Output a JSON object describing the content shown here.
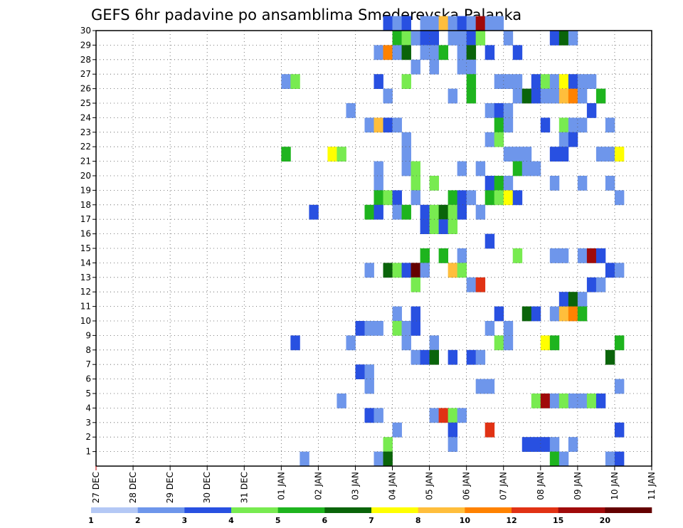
{
  "chart_data": {
    "type": "heatmap",
    "title": "GEFS 6hr padavine po ansamblima Smederevska Palanka",
    "xlabel": "",
    "ylabel": "",
    "x_ticks": [
      "27 DEC",
      "28 DEC",
      "29 DEC",
      "30 DEC",
      "31 DEC",
      "01 JAN",
      "02 JAN",
      "03 JAN",
      "04 JAN",
      "05 JAN",
      "06 JAN",
      "07 JAN",
      "08 JAN",
      "09 JAN",
      "10 JAN",
      "11 JAN"
    ],
    "x_range": [
      "27 DEC 00Z",
      "11 JAN 00Z"
    ],
    "x_step_hours": 6,
    "y_ticks": [
      "1",
      "2",
      "3",
      "4",
      "5",
      "6",
      "7",
      "8",
      "9",
      "10",
      "11",
      "12",
      "13",
      "14",
      "15",
      "16",
      "17",
      "18",
      "19",
      "20",
      "21",
      "22",
      "23",
      "24",
      "25",
      "26",
      "27",
      "28",
      "29",
      "30"
    ],
    "y_range": [
      0,
      30
    ],
    "grid": true,
    "legend": {
      "placement": "bottom",
      "colors": [
        "#b4c8f5",
        "#6e96eb",
        "#2850e1",
        "#78eb50",
        "#1eb41e",
        "#0a640a",
        "#ffff00",
        "#ffbe3c",
        "#ff8200",
        "#e13214",
        "#a00a0a",
        "#640000"
      ],
      "labels": [
        "1",
        "2",
        "3",
        "4",
        "5",
        "6",
        "7",
        "8",
        "10",
        "12",
        "15",
        "20"
      ]
    },
    "cells": [
      [
        30,
        31,
        2
      ],
      [
        30,
        32,
        1
      ],
      [
        30,
        33,
        2
      ],
      [
        30,
        35,
        1
      ],
      [
        30,
        36,
        1
      ],
      [
        30,
        37,
        7
      ],
      [
        30,
        38,
        1
      ],
      [
        30,
        39,
        2
      ],
      [
        30,
        40,
        1
      ],
      [
        30,
        41,
        10
      ],
      [
        30,
        42,
        1
      ],
      [
        30,
        43,
        1
      ],
      [
        29,
        32,
        4
      ],
      [
        29,
        33,
        3
      ],
      [
        29,
        34,
        1
      ],
      [
        29,
        35,
        2
      ],
      [
        29,
        36,
        2
      ],
      [
        29,
        38,
        1
      ],
      [
        29,
        39,
        1
      ],
      [
        29,
        40,
        2
      ],
      [
        29,
        41,
        3
      ],
      [
        29,
        44,
        1
      ],
      [
        29,
        49,
        2
      ],
      [
        29,
        50,
        5
      ],
      [
        29,
        51,
        1
      ],
      [
        28,
        30,
        1
      ],
      [
        28,
        31,
        8
      ],
      [
        28,
        32,
        1
      ],
      [
        28,
        33,
        5
      ],
      [
        28,
        35,
        1
      ],
      [
        28,
        36,
        1
      ],
      [
        28,
        37,
        4
      ],
      [
        28,
        39,
        1
      ],
      [
        28,
        40,
        5
      ],
      [
        28,
        42,
        2
      ],
      [
        28,
        45,
        2
      ],
      [
        27,
        34,
        1
      ],
      [
        27,
        36,
        1
      ],
      [
        27,
        39,
        1
      ],
      [
        27,
        40,
        1
      ],
      [
        26,
        20,
        1
      ],
      [
        26,
        21,
        3
      ],
      [
        26,
        30,
        2
      ],
      [
        26,
        33,
        3
      ],
      [
        26,
        40,
        4
      ],
      [
        26,
        43,
        1
      ],
      [
        26,
        44,
        1
      ],
      [
        26,
        45,
        1
      ],
      [
        26,
        47,
        2
      ],
      [
        26,
        48,
        3
      ],
      [
        26,
        49,
        1
      ],
      [
        26,
        50,
        6
      ],
      [
        26,
        51,
        2
      ],
      [
        26,
        52,
        1
      ],
      [
        26,
        53,
        1
      ],
      [
        25,
        31,
        1
      ],
      [
        25,
        38,
        1
      ],
      [
        25,
        40,
        4
      ],
      [
        25,
        45,
        1
      ],
      [
        25,
        46,
        5
      ],
      [
        25,
        47,
        2
      ],
      [
        25,
        48,
        1
      ],
      [
        25,
        49,
        1
      ],
      [
        25,
        50,
        7
      ],
      [
        25,
        51,
        8
      ],
      [
        25,
        52,
        1
      ],
      [
        25,
        54,
        4
      ],
      [
        24,
        27,
        1
      ],
      [
        24,
        42,
        1
      ],
      [
        24,
        43,
        2
      ],
      [
        24,
        44,
        1
      ],
      [
        24,
        53,
        2
      ],
      [
        23,
        29,
        1
      ],
      [
        23,
        30,
        7
      ],
      [
        23,
        31,
        2
      ],
      [
        23,
        32,
        1
      ],
      [
        23,
        43,
        4
      ],
      [
        23,
        44,
        1
      ],
      [
        23,
        48,
        2
      ],
      [
        23,
        50,
        3
      ],
      [
        23,
        51,
        1
      ],
      [
        23,
        52,
        1
      ],
      [
        23,
        55,
        1
      ],
      [
        22,
        33,
        1
      ],
      [
        22,
        42,
        1
      ],
      [
        22,
        43,
        3
      ],
      [
        22,
        50,
        1
      ],
      [
        22,
        51,
        2
      ],
      [
        21,
        20,
        4
      ],
      [
        21,
        25,
        6
      ],
      [
        21,
        26,
        3
      ],
      [
        21,
        33,
        1
      ],
      [
        21,
        44,
        1
      ],
      [
        21,
        45,
        1
      ],
      [
        21,
        46,
        1
      ],
      [
        21,
        49,
        2
      ],
      [
        21,
        50,
        2
      ],
      [
        21,
        54,
        1
      ],
      [
        21,
        55,
        1
      ],
      [
        21,
        56,
        6
      ],
      [
        20,
        30,
        1
      ],
      [
        20,
        33,
        1
      ],
      [
        20,
        34,
        3
      ],
      [
        20,
        39,
        1
      ],
      [
        20,
        41,
        1
      ],
      [
        20,
        45,
        4
      ],
      [
        20,
        46,
        1
      ],
      [
        20,
        47,
        1
      ],
      [
        19,
        30,
        1
      ],
      [
        19,
        34,
        3
      ],
      [
        19,
        36,
        3
      ],
      [
        19,
        42,
        2
      ],
      [
        19,
        43,
        4
      ],
      [
        19,
        44,
        1
      ],
      [
        19,
        49,
        1
      ],
      [
        19,
        52,
        1
      ],
      [
        19,
        55,
        1
      ],
      [
        18,
        30,
        4
      ],
      [
        18,
        31,
        3
      ],
      [
        18,
        32,
        2
      ],
      [
        18,
        34,
        1
      ],
      [
        18,
        38,
        4
      ],
      [
        18,
        39,
        2
      ],
      [
        18,
        40,
        1
      ],
      [
        18,
        42,
        4
      ],
      [
        18,
        43,
        3
      ],
      [
        18,
        44,
        6
      ],
      [
        18,
        45,
        2
      ],
      [
        18,
        56,
        1
      ],
      [
        17,
        23,
        2
      ],
      [
        17,
        29,
        4
      ],
      [
        17,
        30,
        2
      ],
      [
        17,
        32,
        1
      ],
      [
        17,
        33,
        4
      ],
      [
        17,
        35,
        2
      ],
      [
        17,
        36,
        3
      ],
      [
        17,
        37,
        5
      ],
      [
        17,
        38,
        3
      ],
      [
        17,
        39,
        2
      ],
      [
        17,
        41,
        1
      ],
      [
        16,
        35,
        2
      ],
      [
        16,
        36,
        3
      ],
      [
        16,
        37,
        2
      ],
      [
        16,
        38,
        3
      ],
      [
        15,
        42,
        2
      ],
      [
        14,
        35,
        4
      ],
      [
        14,
        37,
        4
      ],
      [
        14,
        39,
        1
      ],
      [
        14,
        45,
        3
      ],
      [
        14,
        49,
        1
      ],
      [
        14,
        50,
        1
      ],
      [
        14,
        52,
        1
      ],
      [
        14,
        53,
        10
      ],
      [
        14,
        54,
        2
      ],
      [
        13,
        29,
        1
      ],
      [
        13,
        31,
        5
      ],
      [
        13,
        32,
        3
      ],
      [
        13,
        33,
        2
      ],
      [
        13,
        34,
        11
      ],
      [
        13,
        35,
        1
      ],
      [
        13,
        38,
        7
      ],
      [
        13,
        39,
        3
      ],
      [
        13,
        55,
        2
      ],
      [
        13,
        56,
        1
      ],
      [
        12,
        34,
        3
      ],
      [
        12,
        40,
        1
      ],
      [
        12,
        41,
        9
      ],
      [
        12,
        53,
        2
      ],
      [
        12,
        54,
        1
      ],
      [
        11,
        50,
        2
      ],
      [
        11,
        51,
        5
      ],
      [
        11,
        52,
        1
      ],
      [
        10,
        32,
        1
      ],
      [
        10,
        34,
        2
      ],
      [
        10,
        43,
        2
      ],
      [
        10,
        46,
        5
      ],
      [
        10,
        47,
        2
      ],
      [
        10,
        49,
        1
      ],
      [
        10,
        50,
        7
      ],
      [
        10,
        51,
        8
      ],
      [
        10,
        52,
        4
      ],
      [
        9,
        28,
        2
      ],
      [
        9,
        29,
        1
      ],
      [
        9,
        30,
        1
      ],
      [
        9,
        32,
        3
      ],
      [
        9,
        33,
        1
      ],
      [
        9,
        34,
        2
      ],
      [
        9,
        42,
        1
      ],
      [
        9,
        44,
        1
      ],
      [
        8,
        21,
        2
      ],
      [
        8,
        27,
        1
      ],
      [
        8,
        33,
        1
      ],
      [
        8,
        36,
        1
      ],
      [
        8,
        43,
        3
      ],
      [
        8,
        44,
        1
      ],
      [
        8,
        48,
        6
      ],
      [
        8,
        49,
        4
      ],
      [
        8,
        56,
        4
      ],
      [
        7,
        34,
        1
      ],
      [
        7,
        35,
        2
      ],
      [
        7,
        36,
        5
      ],
      [
        7,
        38,
        2
      ],
      [
        7,
        40,
        2
      ],
      [
        7,
        41,
        1
      ],
      [
        7,
        55,
        5
      ],
      [
        6,
        28,
        2
      ],
      [
        6,
        29,
        1
      ],
      [
        5,
        29,
        1
      ],
      [
        5,
        41,
        1
      ],
      [
        5,
        42,
        1
      ],
      [
        5,
        56,
        1
      ],
      [
        4,
        26,
        1
      ],
      [
        4,
        47,
        3
      ],
      [
        4,
        48,
        10
      ],
      [
        4,
        49,
        1
      ],
      [
        4,
        50,
        3
      ],
      [
        4,
        51,
        1
      ],
      [
        4,
        52,
        1
      ],
      [
        4,
        53,
        3
      ],
      [
        4,
        54,
        2
      ],
      [
        3,
        29,
        2
      ],
      [
        3,
        30,
        1
      ],
      [
        3,
        36,
        1
      ],
      [
        3,
        37,
        9
      ],
      [
        3,
        38,
        3
      ],
      [
        3,
        39,
        1
      ],
      [
        2,
        32,
        1
      ],
      [
        2,
        38,
        2
      ],
      [
        2,
        42,
        9
      ],
      [
        2,
        56,
        2
      ],
      [
        1,
        31,
        3
      ],
      [
        1,
        38,
        1
      ],
      [
        1,
        46,
        2
      ],
      [
        1,
        47,
        2
      ],
      [
        1,
        48,
        2
      ],
      [
        1,
        49,
        1
      ],
      [
        1,
        51,
        1
      ],
      [
        0,
        22,
        1
      ],
      [
        0,
        30,
        1
      ],
      [
        0,
        31,
        5
      ],
      [
        0,
        49,
        4
      ],
      [
        0,
        50,
        1
      ],
      [
        0,
        55,
        1
      ],
      [
        0,
        56,
        2
      ]
    ]
  }
}
